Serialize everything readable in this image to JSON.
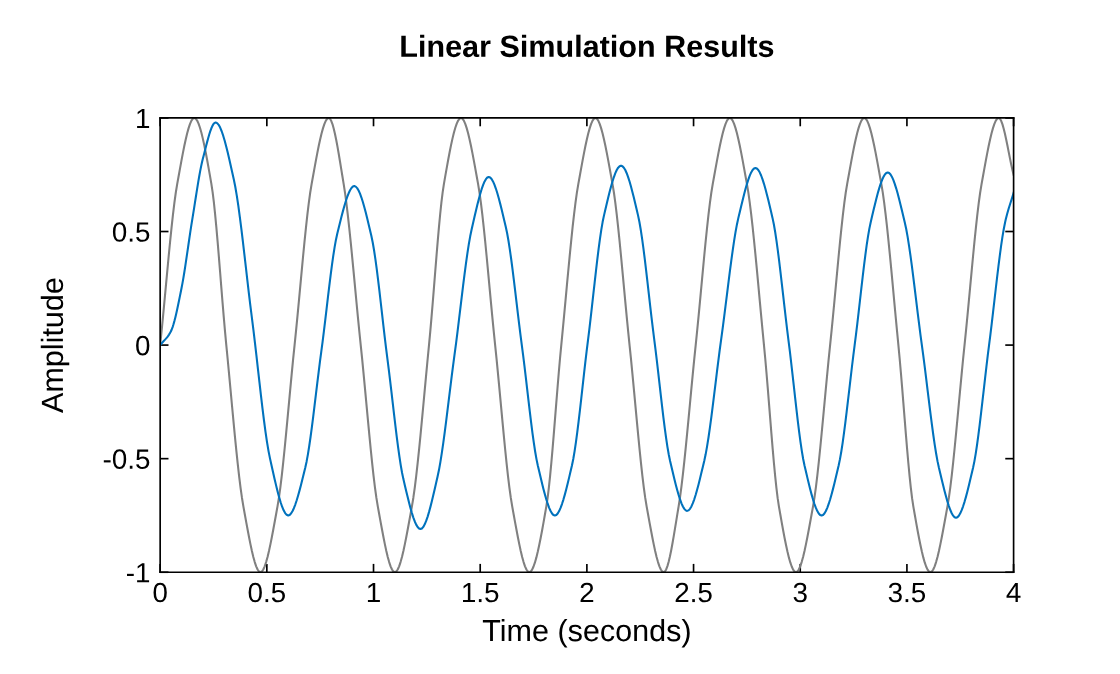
{
  "chart_data": {
    "type": "line",
    "title": "Linear Simulation Results",
    "xlabel": "Time (seconds)",
    "ylabel": "Amplitude",
    "xlim": [
      0,
      4
    ],
    "ylim": [
      -1,
      1
    ],
    "xticks": [
      0,
      0.5,
      1,
      1.5,
      2,
      2.5,
      3,
      3.5,
      4
    ],
    "yticks": [
      -1,
      -0.5,
      0,
      0.5,
      1
    ],
    "grid": false,
    "marker": "none",
    "line_style": "solid",
    "series": [
      {
        "color": "#808080",
        "x": [
          0,
          0.08,
          0.16,
          0.24,
          0.31,
          0.39,
          0.47,
          0.55,
          0.63,
          0.71,
          0.79,
          0.86,
          0.94,
          1.02,
          1.1,
          1.18,
          1.26,
          1.33,
          1.41,
          1.49,
          1.57,
          1.65,
          1.73,
          1.81,
          1.88,
          1.96,
          2.04,
          2.12,
          2.2,
          2.28,
          2.36,
          2.43,
          2.51,
          2.59,
          2.67,
          2.75,
          2.83,
          2.9,
          2.98,
          3.06,
          3.14,
          3.22,
          3.3,
          3.38,
          3.46,
          3.53,
          3.61,
          3.69,
          3.77,
          3.85,
          3.93,
          4.0
        ],
        "values": [
          0,
          0.71,
          1,
          0.71,
          0,
          -0.71,
          -1,
          -0.71,
          0,
          0.71,
          1,
          0.71,
          0,
          -0.71,
          -1,
          -0.71,
          0,
          0.71,
          1,
          0.71,
          0,
          -0.71,
          -1,
          -0.71,
          0,
          0.71,
          1,
          0.71,
          0,
          -0.71,
          -1,
          -0.71,
          0,
          0.71,
          1,
          0.71,
          0,
          -0.71,
          -1,
          -0.71,
          0,
          0.71,
          1,
          0.71,
          0,
          -0.71,
          -1,
          -0.71,
          0,
          0.71,
          1,
          0.75
        ]
      },
      {
        "color": "#0072bd",
        "x": [
          0,
          0.05,
          0.1,
          0.15,
          0.2,
          0.26,
          0.345,
          0.43,
          0.515,
          0.6,
          0.68,
          0.755,
          0.83,
          0.91,
          0.99,
          1.065,
          1.14,
          1.22,
          1.3,
          1.38,
          1.46,
          1.54,
          1.62,
          1.695,
          1.77,
          1.85,
          1.93,
          2.005,
          2.08,
          2.16,
          2.24,
          2.315,
          2.39,
          2.47,
          2.55,
          2.63,
          2.71,
          2.79,
          2.87,
          2.945,
          3.02,
          3.1,
          3.18,
          3.255,
          3.33,
          3.41,
          3.49,
          3.57,
          3.65,
          3.73,
          3.81,
          3.885,
          3.96,
          4.0
        ],
        "values": [
          0,
          0.06,
          0.25,
          0.55,
          0.82,
          0.98,
          0.73,
          0.12,
          -0.5,
          -0.75,
          -0.54,
          -0.03,
          0.49,
          0.7,
          0.48,
          -0.06,
          -0.59,
          -0.81,
          -0.58,
          -0.04,
          0.51,
          0.74,
          0.52,
          0,
          -0.53,
          -0.75,
          -0.53,
          0.02,
          0.57,
          0.79,
          0.57,
          0.03,
          -0.51,
          -0.73,
          -0.51,
          0.03,
          0.56,
          0.78,
          0.56,
          0.02,
          -0.53,
          -0.75,
          -0.53,
          0,
          0.54,
          0.76,
          0.54,
          0,
          -0.54,
          -0.76,
          -0.54,
          0,
          0.54,
          0.67
        ]
      }
    ]
  }
}
